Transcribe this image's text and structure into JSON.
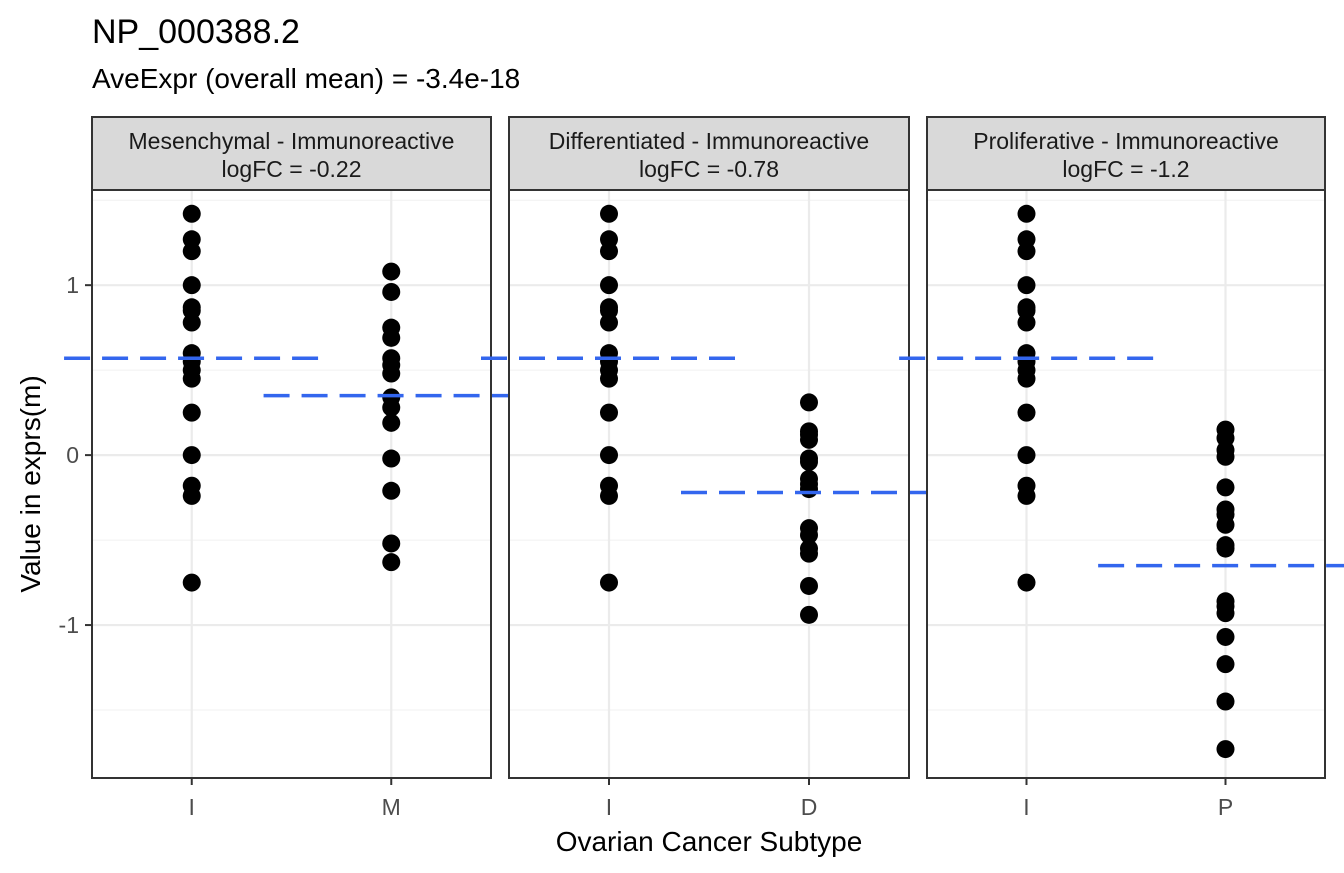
{
  "chart_data": {
    "type": "scatter",
    "title": "NP_000388.2",
    "subtitle": "AveExpr (overall mean) = -3.4e-18",
    "xlabel": "Ovarian Cancer Subtype",
    "ylabel": "Value in exprs(m)",
    "ylim": [
      -1.9,
      1.56
    ],
    "y_ticks": [
      -1,
      0,
      1
    ],
    "grid": true,
    "mean_line_color": "#3366ee",
    "point_color": "#000000",
    "strip_color": "#d9d9d9",
    "panels": [
      {
        "strip_line1": "Mesenchymal - Immunoreactive",
        "strip_line2": "logFC = -0.22",
        "categories": [
          "I",
          "M"
        ],
        "groups": [
          {
            "category": "I",
            "mean": 0.57,
            "values": [
              1.42,
              1.27,
              1.2,
              1.0,
              0.87,
              0.85,
              0.78,
              0.6,
              0.55,
              0.5,
              0.45,
              0.25,
              0.0,
              -0.18,
              -0.24,
              -0.75
            ]
          },
          {
            "category": "M",
            "mean": 0.35,
            "values": [
              1.08,
              0.96,
              0.75,
              0.69,
              0.57,
              0.53,
              0.48,
              0.34,
              0.28,
              0.19,
              -0.02,
              -0.21,
              -0.52,
              -0.63
            ]
          }
        ]
      },
      {
        "strip_line1": "Differentiated - Immunoreactive",
        "strip_line2": "logFC = -0.78",
        "categories": [
          "I",
          "D"
        ],
        "groups": [
          {
            "category": "I",
            "mean": 0.57,
            "values": [
              1.42,
              1.27,
              1.2,
              1.0,
              0.87,
              0.85,
              0.78,
              0.6,
              0.55,
              0.5,
              0.45,
              0.25,
              0.0,
              -0.18,
              -0.24,
              -0.75
            ]
          },
          {
            "category": "D",
            "mean": -0.22,
            "values": [
              0.31,
              0.14,
              0.12,
              0.09,
              -0.02,
              -0.04,
              -0.14,
              -0.17,
              -0.2,
              -0.43,
              -0.47,
              -0.55,
              -0.58,
              -0.77,
              -0.94
            ]
          }
        ]
      },
      {
        "strip_line1": "Proliferative - Immunoreactive",
        "strip_line2": "logFC = -1.2",
        "categories": [
          "I",
          "P"
        ],
        "groups": [
          {
            "category": "I",
            "mean": 0.57,
            "values": [
              1.42,
              1.27,
              1.2,
              1.0,
              0.87,
              0.85,
              0.78,
              0.6,
              0.55,
              0.5,
              0.45,
              0.25,
              0.0,
              -0.18,
              -0.24,
              -0.75
            ]
          },
          {
            "category": "P",
            "mean": -0.65,
            "values": [
              0.15,
              0.1,
              0.03,
              -0.01,
              -0.19,
              -0.32,
              -0.35,
              -0.41,
              -0.53,
              -0.55,
              -0.86,
              -0.89,
              -0.93,
              -1.07,
              -1.23,
              -1.45,
              -1.73
            ]
          }
        ]
      }
    ]
  }
}
